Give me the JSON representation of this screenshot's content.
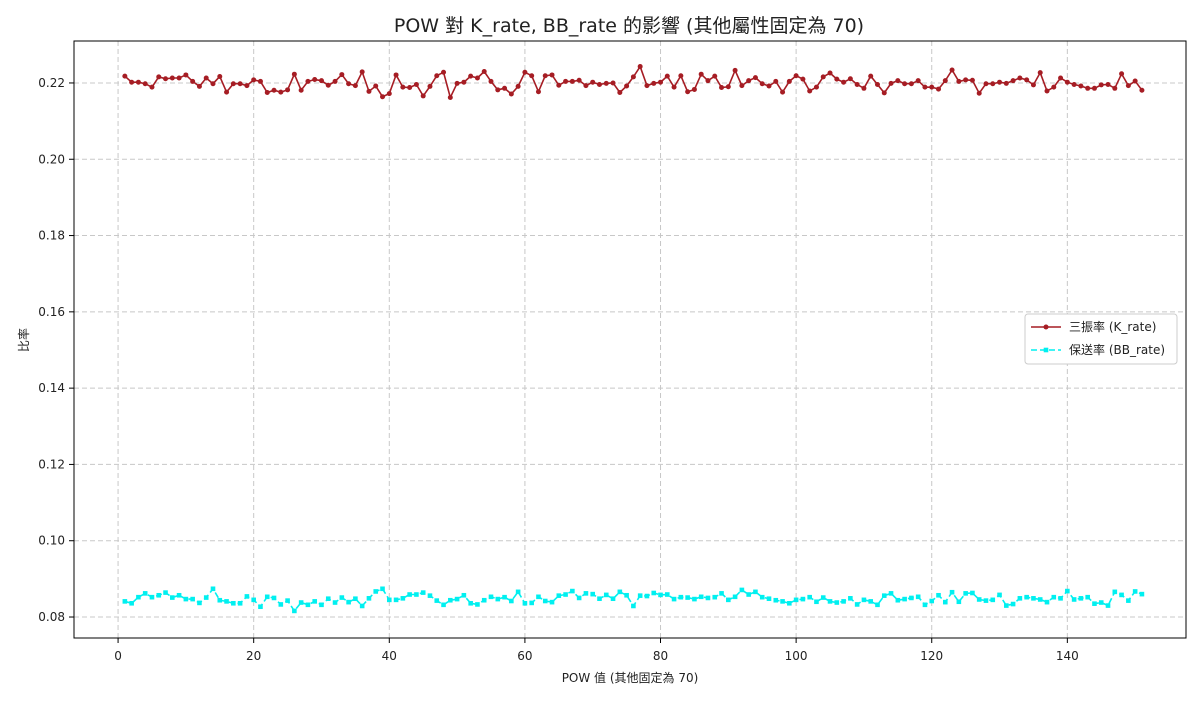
{
  "chart_data": {
    "type": "line",
    "title": "POW 對 K_rate, BB_rate 的影響 (其他屬性固定為 70)",
    "xlabel": "POW 值 (其他固定為 70)",
    "ylabel": "比率",
    "xlim": [
      -6.5,
      157.5
    ],
    "ylim": [
      0.0745,
      0.231
    ],
    "xticks": [
      0,
      20,
      40,
      60,
      80,
      100,
      120,
      140
    ],
    "yticks": [
      0.08,
      0.1,
      0.12,
      0.14,
      0.16,
      0.18,
      0.2,
      0.22
    ],
    "grid": true,
    "legend_position": "center-right",
    "x_start": 1,
    "series": [
      {
        "name": "三振率 (K_rate)",
        "color": "#a61d24",
        "line_style": "solid",
        "marker": "circle",
        "values": [
          0.2218,
          0.2202,
          0.2202,
          0.2198,
          0.2189,
          0.2216,
          0.2211,
          0.2213,
          0.2213,
          0.2221,
          0.2204,
          0.2191,
          0.2213,
          0.2198,
          0.2217,
          0.2176,
          0.2198,
          0.2198,
          0.2193,
          0.2208,
          0.2204,
          0.2175,
          0.2181,
          0.2176,
          0.2182,
          0.2223,
          0.2181,
          0.2204,
          0.2209,
          0.2206,
          0.2194,
          0.2204,
          0.2222,
          0.2198,
          0.2193,
          0.2229,
          0.2178,
          0.2192,
          0.2164,
          0.2172,
          0.2221,
          0.2189,
          0.2188,
          0.2196,
          0.2166,
          0.2191,
          0.2219,
          0.2228,
          0.2162,
          0.2199,
          0.2202,
          0.2218,
          0.2213,
          0.223,
          0.2204,
          0.2182,
          0.2186,
          0.2171,
          0.2191,
          0.2228,
          0.2219,
          0.2177,
          0.2219,
          0.2221,
          0.2194,
          0.2204,
          0.2204,
          0.2207,
          0.2193,
          0.2202,
          0.2196,
          0.2199,
          0.22,
          0.2175,
          0.2192,
          0.2216,
          0.2243,
          0.2193,
          0.2199,
          0.2202,
          0.2218,
          0.2189,
          0.2219,
          0.2177,
          0.2183,
          0.2223,
          0.2206,
          0.2218,
          0.2188,
          0.219,
          0.2233,
          0.2193,
          0.2206,
          0.2214,
          0.2198,
          0.2192,
          0.2204,
          0.2176,
          0.2204,
          0.2219,
          0.221,
          0.2179,
          0.2189,
          0.2216,
          0.2226,
          0.221,
          0.2202,
          0.2211,
          0.2196,
          0.2186,
          0.2218,
          0.2196,
          0.2174,
          0.2199,
          0.2206,
          0.2198,
          0.2198,
          0.2206,
          0.2189,
          0.2189,
          0.2184,
          0.2206,
          0.2234,
          0.2204,
          0.2208,
          0.2207,
          0.2173,
          0.2198,
          0.2198,
          0.2202,
          0.2199,
          0.2206,
          0.2213,
          0.2208,
          0.2195,
          0.2227,
          0.2179,
          0.2189,
          0.2213,
          0.2202,
          0.2196,
          0.2192,
          0.2186,
          0.2186,
          0.2195,
          0.2196,
          0.2186,
          0.2224,
          0.2193,
          0.2205,
          0.2181
        ]
      },
      {
        "name": "保送率 (BB_rate)",
        "color": "#00f0f0",
        "line_style": "dashed",
        "marker": "square",
        "values": [
          0.0841,
          0.0836,
          0.0852,
          0.0862,
          0.0852,
          0.0857,
          0.0864,
          0.0851,
          0.0857,
          0.0847,
          0.0847,
          0.0837,
          0.0851,
          0.0874,
          0.0844,
          0.0841,
          0.0836,
          0.0836,
          0.0854,
          0.0845,
          0.0827,
          0.0853,
          0.085,
          0.0833,
          0.0843,
          0.0816,
          0.0838,
          0.0832,
          0.0841,
          0.0832,
          0.0848,
          0.0838,
          0.0851,
          0.0839,
          0.0848,
          0.0829,
          0.0849,
          0.0867,
          0.0874,
          0.0845,
          0.0845,
          0.0849,
          0.0859,
          0.0859,
          0.0864,
          0.0856,
          0.0843,
          0.0832,
          0.0844,
          0.0847,
          0.0857,
          0.0836,
          0.0833,
          0.0844,
          0.0853,
          0.0847,
          0.0852,
          0.0842,
          0.0866,
          0.0836,
          0.0837,
          0.0853,
          0.0842,
          0.0839,
          0.0856,
          0.0859,
          0.0868,
          0.085,
          0.0862,
          0.086,
          0.0848,
          0.0858,
          0.0848,
          0.0866,
          0.0857,
          0.0829,
          0.0856,
          0.0855,
          0.0863,
          0.0858,
          0.0859,
          0.0847,
          0.0852,
          0.0851,
          0.0847,
          0.0853,
          0.085,
          0.0852,
          0.0862,
          0.0845,
          0.0853,
          0.0871,
          0.0859,
          0.0866,
          0.0852,
          0.0848,
          0.0844,
          0.0841,
          0.0836,
          0.0845,
          0.0847,
          0.0852,
          0.084,
          0.0851,
          0.0841,
          0.0838,
          0.0841,
          0.0849,
          0.0833,
          0.0845,
          0.0841,
          0.0832,
          0.0856,
          0.0862,
          0.0844,
          0.0847,
          0.085,
          0.0853,
          0.0832,
          0.0842,
          0.0857,
          0.0839,
          0.0865,
          0.084,
          0.0862,
          0.0863,
          0.0846,
          0.0843,
          0.0845,
          0.0858,
          0.083,
          0.0834,
          0.0849,
          0.0852,
          0.0849,
          0.0846,
          0.0839,
          0.0852,
          0.0849,
          0.0868,
          0.0846,
          0.0849,
          0.0852,
          0.0835,
          0.0838,
          0.083,
          0.0866,
          0.0858,
          0.0843,
          0.0867,
          0.086
        ]
      }
    ]
  }
}
